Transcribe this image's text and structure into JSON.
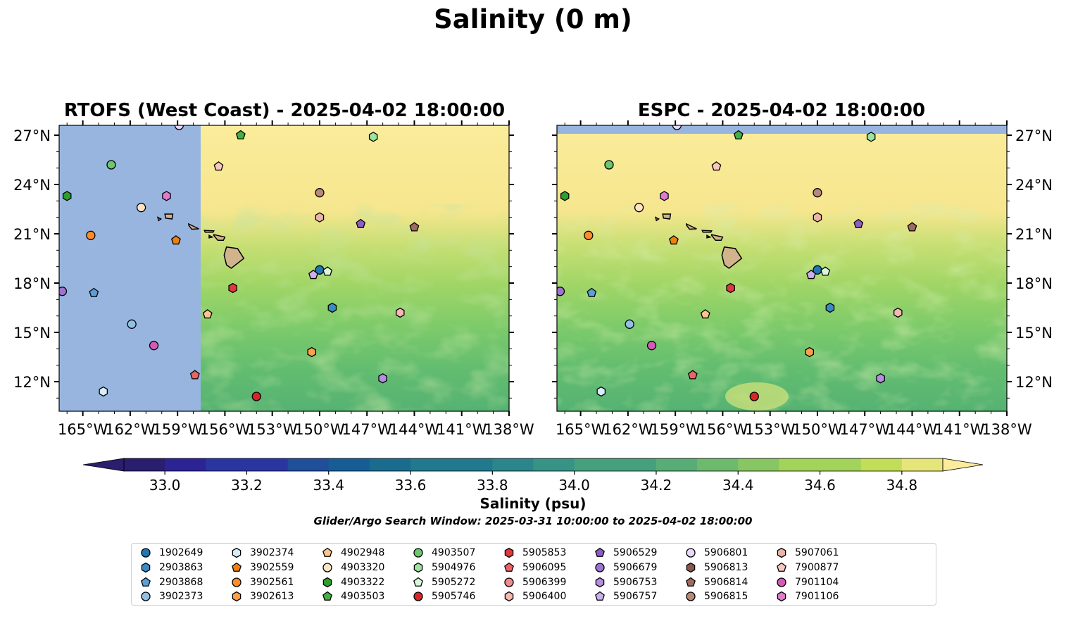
{
  "figure": {
    "suptitle": "Salinity (0 m)",
    "colorbar_label": "Salinity (psu)",
    "search_window": "Glider/Argo Search Window: 2025-03-31 10:00:00 to 2025-04-02 18:00:00"
  },
  "colors": {
    "land_mask": "#98b5e0",
    "fresh_low": "#2a1e6e",
    "saline_high": "#fbec9b",
    "island": "#d2b48c"
  },
  "colorbar": {
    "min": 32.9,
    "max": 34.9,
    "extend": "both",
    "ticks": [
      33.0,
      33.2,
      33.4,
      33.6,
      33.8,
      34.0,
      34.2,
      34.4,
      34.6,
      34.8
    ],
    "tick_labels": [
      "33.0",
      "33.2",
      "33.4",
      "33.6",
      "33.8",
      "34.0",
      "34.2",
      "34.4",
      "34.6",
      "34.8"
    ]
  },
  "chart_data": [
    {
      "type": "heatmap",
      "title": "RTOFS (West Coast) - 2025-04-02 18:00:00",
      "variable": "Salinity (psu)",
      "xlim": [
        -166.5,
        -138
      ],
      "ylim": [
        10.2,
        27.6
      ],
      "x_ticks": [
        -165,
        -162,
        -159,
        -156,
        -153,
        -150,
        -147,
        -144,
        -141,
        -138
      ],
      "x_tick_labels": [
        "165°W",
        "162°W",
        "159°W",
        "156°W",
        "153°W",
        "150°W",
        "147°W",
        "144°W",
        "141°W",
        "138°W"
      ],
      "y_ticks": [
        12,
        15,
        18,
        21,
        24,
        27
      ],
      "y_tick_labels": [
        "12°N",
        "15°N",
        "18°N",
        "21°N",
        "24°N",
        "27°N"
      ],
      "y_axis_side": "left",
      "no_data_region": {
        "lon_max": -157.5
      },
      "floats": [
        {
          "id": "3902374",
          "lon": -163.7,
          "lat": 11.4
        },
        {
          "id": "4903507",
          "lon": -163.2,
          "lat": 25.2
        },
        {
          "id": "3902561",
          "lon": -164.5,
          "lat": 20.9
        },
        {
          "id": "2903868",
          "lon": -164.3,
          "lat": 17.4
        },
        {
          "id": "5906679",
          "lon": -166.3,
          "lat": 17.5
        },
        {
          "id": "4903322",
          "lon": -166.0,
          "lat": 23.3
        },
        {
          "id": "3902373",
          "lon": -161.9,
          "lat": 15.5
        },
        {
          "id": "4903320",
          "lon": -161.3,
          "lat": 22.6
        },
        {
          "id": "7901104",
          "lon": -160.5,
          "lat": 14.2
        },
        {
          "id": "7901106",
          "lon": -159.7,
          "lat": 23.3
        },
        {
          "id": "3902559",
          "lon": -159.1,
          "lat": 20.6
        },
        {
          "id": "5906801",
          "lon": -158.9,
          "lat": 27.6
        },
        {
          "id": "5906095",
          "lon": -157.9,
          "lat": 12.4
        },
        {
          "id": "4902948",
          "lon": -157.1,
          "lat": 16.1
        },
        {
          "id": "7900877",
          "lon": -156.4,
          "lat": 25.1
        },
        {
          "id": "5905853",
          "lon": -155.5,
          "lat": 17.7
        },
        {
          "id": "4903503",
          "lon": -155.0,
          "lat": 27.0
        },
        {
          "id": "5905746",
          "lon": -154.0,
          "lat": 11.1
        },
        {
          "id": "3902613",
          "lon": -150.5,
          "lat": 13.8
        },
        {
          "id": "5906757",
          "lon": -150.4,
          "lat": 18.5
        },
        {
          "id": "1902649",
          "lon": -150.0,
          "lat": 18.8
        },
        {
          "id": "5905272",
          "lon": -149.5,
          "lat": 18.7
        },
        {
          "id": "2903863",
          "lon": -149.2,
          "lat": 16.5
        },
        {
          "id": "5906815",
          "lon": -150.0,
          "lat": 23.5
        },
        {
          "id": "5907061",
          "lon": -150.0,
          "lat": 22.0
        },
        {
          "id": "5906529",
          "lon": -147.4,
          "lat": 21.6
        },
        {
          "id": "5904976",
          "lon": -146.6,
          "lat": 26.9
        },
        {
          "id": "5906753",
          "lon": -146.0,
          "lat": 12.2
        },
        {
          "id": "5906400",
          "lon": -144.9,
          "lat": 16.2
        },
        {
          "id": "5906814",
          "lon": -144.0,
          "lat": 21.4
        }
      ]
    },
    {
      "type": "heatmap",
      "title": "ESPC - 2025-04-02 18:00:00",
      "variable": "Salinity (psu)",
      "xlim": [
        -166.5,
        -138
      ],
      "ylim": [
        10.2,
        27.6
      ],
      "x_ticks": [
        -165,
        -162,
        -159,
        -156,
        -153,
        -150,
        -147,
        -144,
        -141,
        -138
      ],
      "x_tick_labels": [
        "165°W",
        "162°W",
        "159°W",
        "156°W",
        "153°W",
        "150°W",
        "147°W",
        "144°W",
        "141°W",
        "138°W"
      ],
      "y_ticks": [
        12,
        15,
        18,
        21,
        24,
        27
      ],
      "y_tick_labels": [
        "12°N",
        "15°N",
        "18°N",
        "21°N",
        "24°N",
        "27°N"
      ],
      "y_axis_side": "right",
      "no_data_region": {
        "lat_min": 27.1
      },
      "floats": "same as RTOFS panel"
    }
  ],
  "legend": {
    "entries": [
      {
        "id": "1902649",
        "marker": "circle",
        "color": "#1f77b4"
      },
      {
        "id": "2903863",
        "marker": "hexagon",
        "color": "#3a8ac8"
      },
      {
        "id": "2903868",
        "marker": "pentagon",
        "color": "#5a9fd6"
      },
      {
        "id": "3902373",
        "marker": "circle",
        "color": "#8fc0e6"
      },
      {
        "id": "3902374",
        "marker": "hexagon",
        "color": "#d8ecfa"
      },
      {
        "id": "3902559",
        "marker": "pentagon",
        "color": "#f07f10"
      },
      {
        "id": "3902561",
        "marker": "circle",
        "color": "#ff8c2a"
      },
      {
        "id": "3902613",
        "marker": "hexagon",
        "color": "#ffa04a"
      },
      {
        "id": "4902948",
        "marker": "pentagon",
        "color": "#ffc48a"
      },
      {
        "id": "4903320",
        "marker": "circle",
        "color": "#ffe3c4"
      },
      {
        "id": "4903322",
        "marker": "hexagon",
        "color": "#2ca02c"
      },
      {
        "id": "4903503",
        "marker": "pentagon",
        "color": "#43b043"
      },
      {
        "id": "4903507",
        "marker": "circle",
        "color": "#6cc86c"
      },
      {
        "id": "5904976",
        "marker": "hexagon",
        "color": "#9ee39e"
      },
      {
        "id": "5905272",
        "marker": "pentagon",
        "color": "#d9f7d9"
      },
      {
        "id": "5905746",
        "marker": "circle",
        "color": "#d62728"
      },
      {
        "id": "5905853",
        "marker": "hexagon",
        "color": "#e0393c"
      },
      {
        "id": "5906095",
        "marker": "pentagon",
        "color": "#ea6466"
      },
      {
        "id": "5906399",
        "marker": "circle",
        "color": "#f08c8c"
      },
      {
        "id": "5906400",
        "marker": "hexagon",
        "color": "#f7b8b3"
      },
      {
        "id": "5906529",
        "marker": "pentagon",
        "color": "#8e5cc4"
      },
      {
        "id": "5906679",
        "marker": "circle",
        "color": "#9e74d0"
      },
      {
        "id": "5906753",
        "marker": "hexagon",
        "color": "#b48ee0"
      },
      {
        "id": "5906757",
        "marker": "pentagon",
        "color": "#cbb0ee"
      },
      {
        "id": "5906801",
        "marker": "circle",
        "color": "#e7d9f8"
      },
      {
        "id": "5906813",
        "marker": "hexagon",
        "color": "#8c564b"
      },
      {
        "id": "5906814",
        "marker": "pentagon",
        "color": "#9e6b5f"
      },
      {
        "id": "5906815",
        "marker": "circle",
        "color": "#b88978"
      },
      {
        "id": "5907061",
        "marker": "hexagon",
        "color": "#e8b5a8"
      },
      {
        "id": "7900877",
        "marker": "pentagon",
        "color": "#f7c8c0"
      },
      {
        "id": "7901104",
        "marker": "circle",
        "color": "#d659b8"
      },
      {
        "id": "7901106",
        "marker": "hexagon",
        "color": "#e07bd0"
      }
    ]
  }
}
